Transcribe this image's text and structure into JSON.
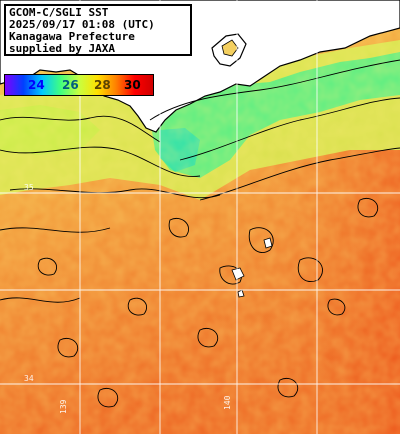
{
  "title_box": {
    "line1": "GCOM-C/SGLI SST",
    "line2": "2025/09/17 01:08 (UTC)",
    "line3": "Kanagawa Prefecture",
    "line4": "supplied by JAXA"
  },
  "legend": {
    "labels": [
      "24",
      "26",
      "28",
      "30"
    ],
    "label_colors": [
      "#0000ff",
      "#005f7f",
      "#5a4400",
      "#000000"
    ],
    "gradient_colors": [
      "#8000ff",
      "#0040ff",
      "#00c8ff",
      "#40ff80",
      "#c8ff40",
      "#ffe000",
      "#ff8000",
      "#ff0000",
      "#d00000"
    ]
  },
  "map": {
    "grid_lines": "on",
    "grid_color": "#ffffff",
    "land_color": "#ffffff",
    "coast_outline_color": "#000000",
    "isotherm_color": "#000000",
    "sea_colors": {
      "cool": "#4ef08a",
      "mild": "#d8ef56",
      "warm": "#f2a442",
      "hot": "#ee6a26"
    },
    "grid_tick_labels": [
      "35",
      "34",
      "139",
      "140"
    ]
  }
}
